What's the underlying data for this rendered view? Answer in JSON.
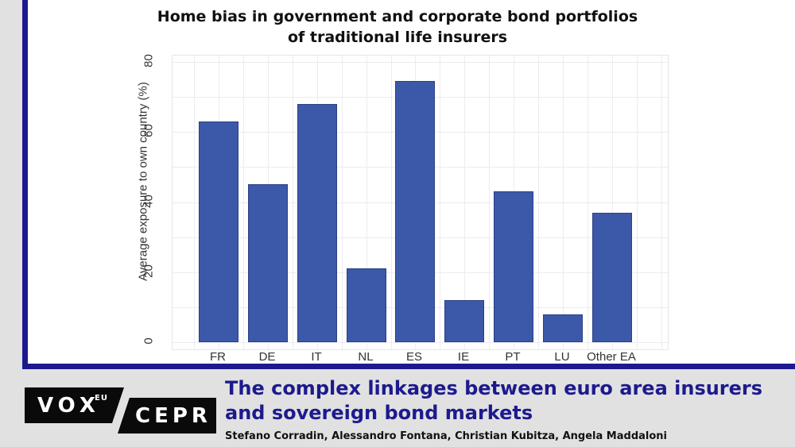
{
  "chart_data": {
    "type": "bar",
    "title": "Home bias in government and corporate bond portfolios of traditional life insurers",
    "xlabel": "",
    "ylabel": "Average exposure to own country (%)",
    "categories": [
      "FR",
      "DE",
      "IT",
      "NL",
      "ES",
      "IE",
      "PT",
      "LU",
      "Other EA"
    ],
    "values": [
      63,
      45,
      68,
      21,
      74.5,
      12,
      43,
      8,
      37
    ],
    "ylim": [
      0,
      80
    ],
    "yticks": [
      0,
      20,
      40,
      60,
      80
    ],
    "grid": true,
    "bar_color": "#3b59a8",
    "legend": null
  },
  "chart": {
    "title": "Home bias in government and corporate bond portfolios of traditional life insurers",
    "ylabel": "Average exposure to own country (%)",
    "yticks": [
      "0",
      "20",
      "40",
      "60",
      "80"
    ],
    "xticks": [
      "FR",
      "DE",
      "IT",
      "NL",
      "ES",
      "IE",
      "PT",
      "LU",
      "Other EA"
    ]
  },
  "footer": {
    "logo_vox": "VOX",
    "logo_eu": "EU",
    "logo_cepr": "CEPR",
    "article_title": "The complex linkages between euro area insurers and sovereign bond markets",
    "authors": "Stefano Corradin, Alessandro Fontana, Christian Kubitza, Angela Maddaloni"
  },
  "colors": {
    "accent": "#1d1a8e",
    "bar": "#3b59a8",
    "background": "#e1e1e1"
  }
}
